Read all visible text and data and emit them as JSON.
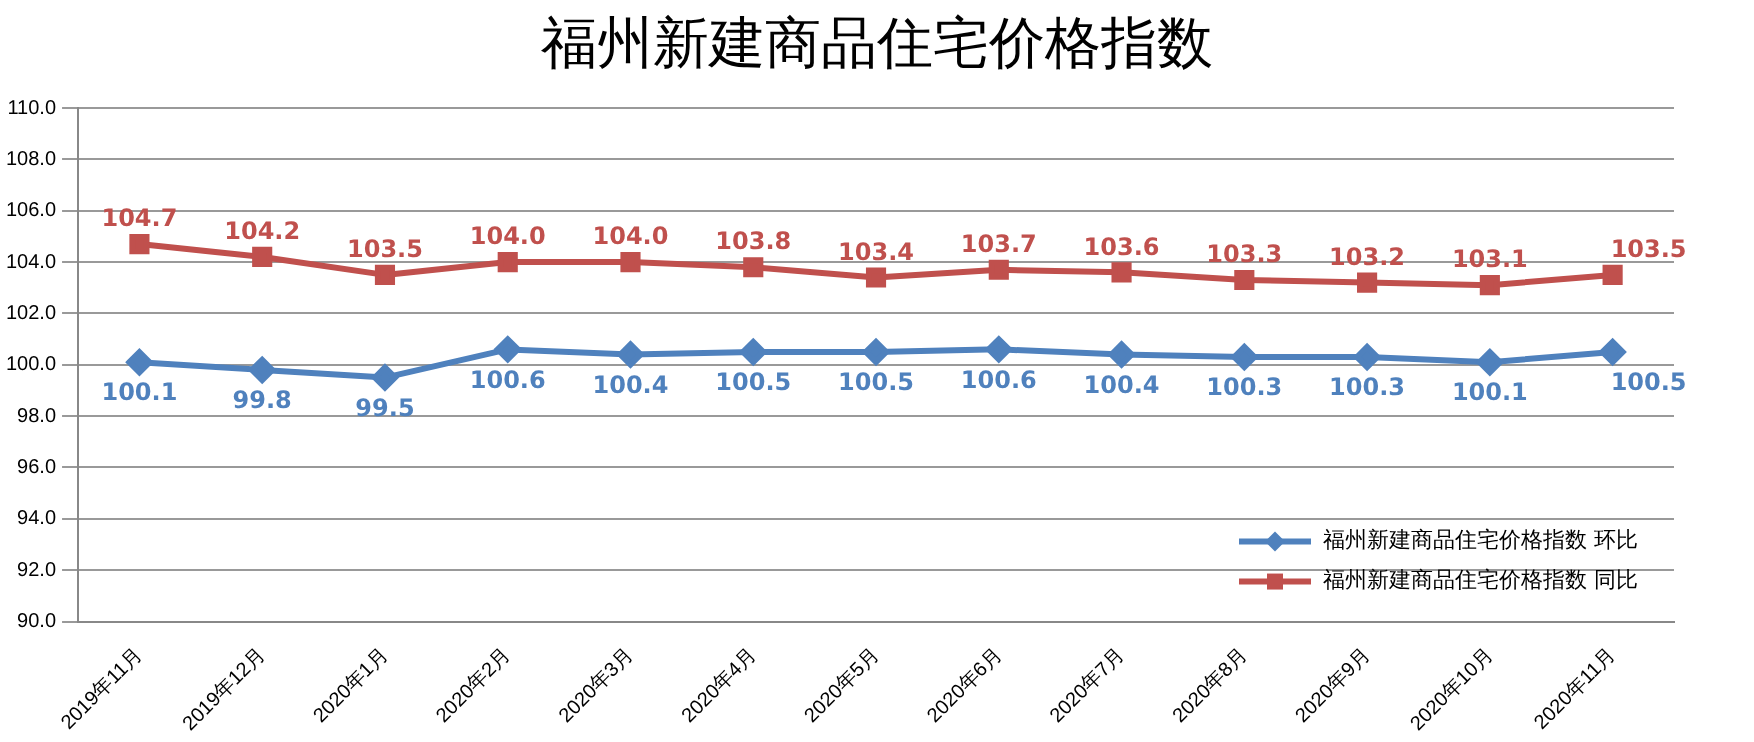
{
  "chart_data": {
    "type": "line",
    "title": "福州新建商品住宅价格指数",
    "categories": [
      "2019年11月",
      "2019年12月",
      "2020年1月",
      "2020年2月",
      "2020年3月",
      "2020年4月",
      "2020年5月",
      "2020年6月",
      "2020年7月",
      "2020年8月",
      "2020年9月",
      "2020年10月",
      "2020年11月"
    ],
    "series": [
      {
        "name": "福州新建商品住宅价格指数 环比",
        "color": "#4f81bd",
        "marker": "diamond",
        "values": [
          100.1,
          99.8,
          99.5,
          100.6,
          100.4,
          100.5,
          100.5,
          100.6,
          100.4,
          100.3,
          100.3,
          100.1,
          100.5
        ],
        "value_labels": [
          "100.1",
          "99.8",
          "99.5",
          "100.6",
          "100.4",
          "100.5",
          "100.5",
          "100.6",
          "100.4",
          "100.3",
          "100.3",
          "100.1",
          "100.5"
        ]
      },
      {
        "name": "福州新建商品住宅价格指数 同比",
        "color": "#c0504d",
        "marker": "square",
        "values": [
          104.7,
          104.2,
          103.5,
          104.0,
          104.0,
          103.8,
          103.4,
          103.7,
          103.6,
          103.3,
          103.2,
          103.1,
          103.5
        ],
        "value_labels": [
          "104.7",
          "104.2",
          "103.5",
          "104.0",
          "104.0",
          "103.8",
          "103.4",
          "103.7",
          "103.6",
          "103.3",
          "103.2",
          "103.1",
          "103.5"
        ]
      }
    ],
    "ylim": [
      90,
      110
    ],
    "yticks": [
      {
        "value": 90,
        "label": "90.0"
      },
      {
        "value": 92,
        "label": "92.0"
      },
      {
        "value": 94,
        "label": "94.0"
      },
      {
        "value": 96,
        "label": "96.0"
      },
      {
        "value": 98,
        "label": "98.0"
      },
      {
        "value": 100,
        "label": "100.0"
      },
      {
        "value": 102,
        "label": "102.0"
      },
      {
        "value": 104,
        "label": "104.0"
      },
      {
        "value": 106,
        "label": "106.0"
      },
      {
        "value": 108,
        "label": "108.0"
      },
      {
        "value": 110,
        "label": "110.0"
      }
    ],
    "grid": "y",
    "legend": "bottom right",
    "line_style": "solid"
  }
}
